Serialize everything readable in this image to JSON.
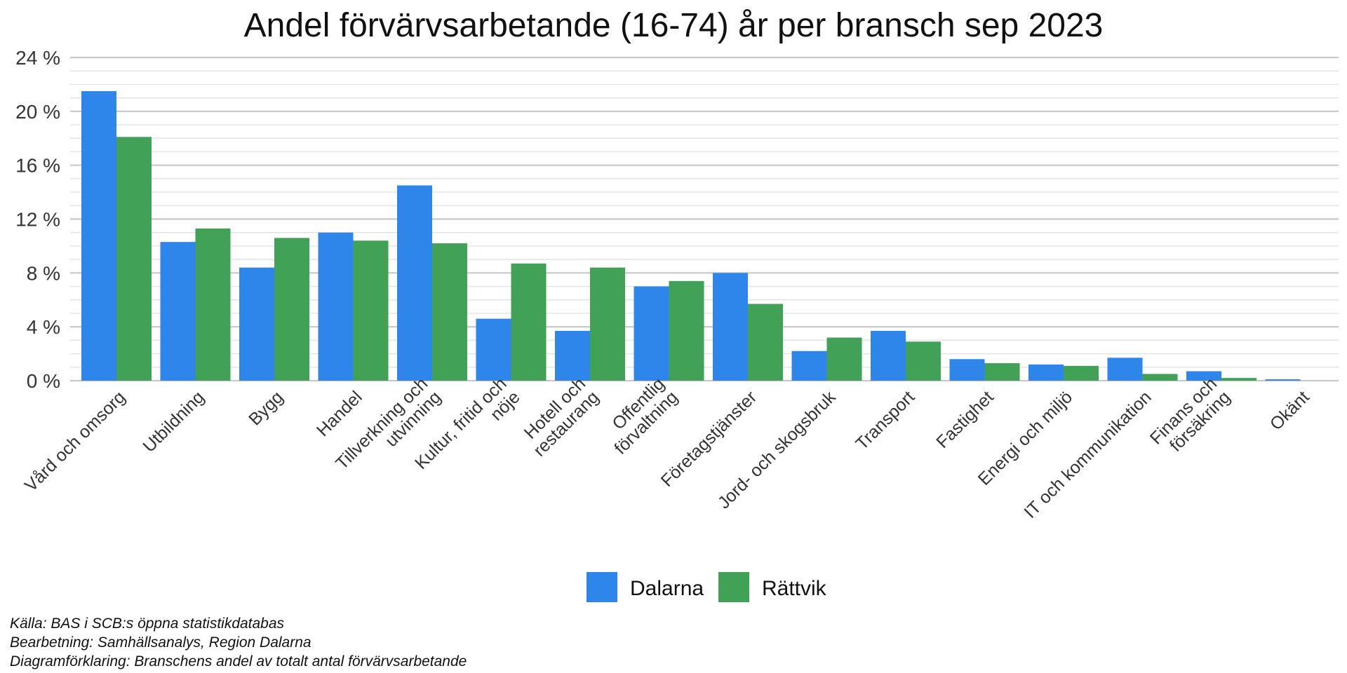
{
  "chart_data": {
    "type": "bar",
    "title": "Andel förvärvsarbetande (16-74) år per bransch sep 2023",
    "categories": [
      [
        "Vård och omsorg"
      ],
      [
        "Utbildning"
      ],
      [
        "Bygg"
      ],
      [
        "Handel"
      ],
      [
        "Tillverkning och",
        "utvinning"
      ],
      [
        "Kultur, fritid och",
        "nöje"
      ],
      [
        "Hotell och",
        "restaurang"
      ],
      [
        "Offentlig",
        "förvaltning"
      ],
      [
        "Företagstjänster"
      ],
      [
        "Jord- och skogsbruk"
      ],
      [
        "Transport"
      ],
      [
        "Fastighet"
      ],
      [
        "Energi och miljö"
      ],
      [
        "IT och kommunikation"
      ],
      [
        "Finans och",
        "försäkring"
      ],
      [
        "Okänt"
      ]
    ],
    "series": [
      {
        "name": "Dalarna",
        "color": "#2E86EA",
        "values": [
          21.5,
          10.3,
          8.4,
          11.0,
          14.5,
          4.6,
          3.7,
          7.0,
          8.0,
          2.2,
          3.7,
          1.6,
          1.2,
          1.7,
          0.7,
          0.1
        ]
      },
      {
        "name": "Rättvik",
        "color": "#41A157",
        "values": [
          18.1,
          11.3,
          10.6,
          10.4,
          10.2,
          8.7,
          8.4,
          7.4,
          5.7,
          3.2,
          2.9,
          1.3,
          1.1,
          0.5,
          0.2,
          0.0
        ]
      }
    ],
    "y_ticks": [
      "0 %",
      "4 %",
      "8 %",
      "12 %",
      "16 %",
      "20 %",
      "24 %"
    ],
    "ylim": [
      0,
      24
    ],
    "grid": true,
    "legend": "bottom"
  },
  "footer": {
    "source": "Källa: BAS i SCB:s öppna statistikdatabas",
    "processing": "Bearbetning: Samhällsanalys, Region Dalarna",
    "explanation": "Diagramförklaring: Branschens andel av totalt antal förvärvsarbetande"
  }
}
